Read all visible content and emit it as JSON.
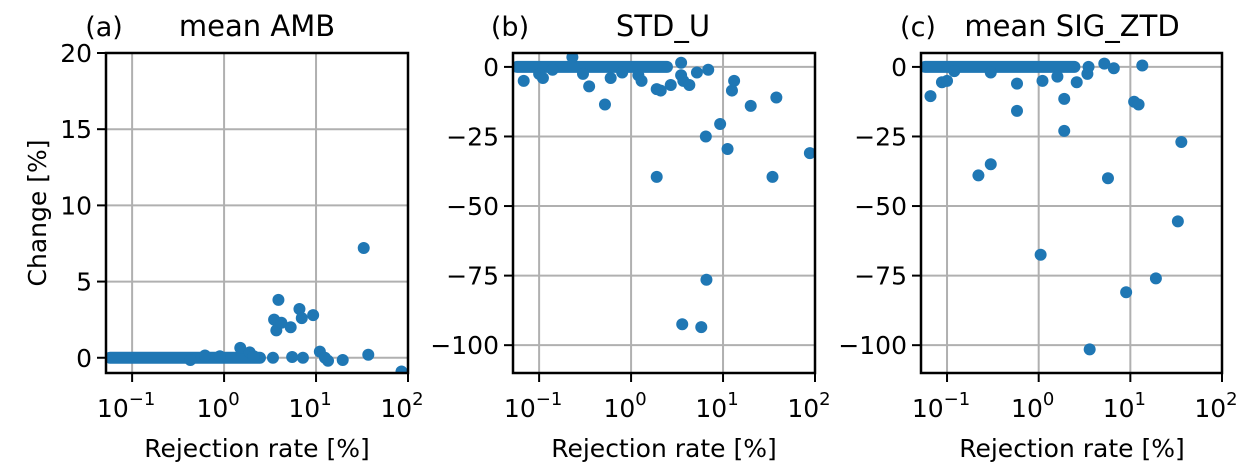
{
  "figure": {
    "ylabel": "Change [%]",
    "point_color": "#1f77b4",
    "grid_color": "#b0b0b0"
  },
  "chart_data": [
    {
      "type": "scatter",
      "panel_label": "(a)",
      "title": "mean AMB",
      "xlabel": "Rejection rate [%]",
      "ylabel": "Change [%]",
      "xscale": "log",
      "xlim": [
        0.052,
        100
      ],
      "ylim": [
        -1,
        20
      ],
      "xticks": [
        0.1,
        1,
        10,
        100
      ],
      "xtick_labels": [
        [
          "10",
          "−1"
        ],
        [
          "10",
          "0"
        ],
        [
          "10",
          "1"
        ],
        [
          "10",
          "2"
        ]
      ],
      "yticks": [
        0,
        5,
        10,
        15,
        20
      ],
      "ytick_labels": [
        "0",
        "5",
        "10",
        "15",
        "20"
      ],
      "grid": true,
      "dense_band": {
        "x_from": 0.052,
        "x_to": 3.0,
        "y": 0
      },
      "points": [
        [
          0.43,
          -0.15
        ],
        [
          0.62,
          0.15
        ],
        [
          0.9,
          0.1
        ],
        [
          1.5,
          0.65
        ],
        [
          1.9,
          0.35
        ],
        [
          2.1,
          0.1
        ],
        [
          3.4,
          0.0
        ],
        [
          3.5,
          2.5
        ],
        [
          3.7,
          1.8
        ],
        [
          3.9,
          3.8
        ],
        [
          4.2,
          2.3
        ],
        [
          5.3,
          2.0
        ],
        [
          5.5,
          0.05
        ],
        [
          6.6,
          3.2
        ],
        [
          7.0,
          2.6
        ],
        [
          7.2,
          0.0
        ],
        [
          9.3,
          2.8
        ],
        [
          11.0,
          0.4
        ],
        [
          12.5,
          0.0
        ],
        [
          13.5,
          -0.2
        ],
        [
          19.5,
          -0.15
        ],
        [
          33.0,
          7.2
        ],
        [
          37.0,
          0.2
        ],
        [
          85.0,
          -0.9
        ]
      ]
    },
    {
      "type": "scatter",
      "panel_label": "(b)",
      "title": "STD_U",
      "xlabel": "Rejection rate [%]",
      "xscale": "log",
      "xlim": [
        0.052,
        100
      ],
      "ylim": [
        -110,
        5
      ],
      "xticks": [
        0.1,
        1,
        10,
        100
      ],
      "xtick_labels": [
        [
          "10",
          "−1"
        ],
        [
          "10",
          "0"
        ],
        [
          "10",
          "1"
        ],
        [
          "10",
          "2"
        ]
      ],
      "yticks": [
        0,
        -25,
        -50,
        -75,
        -100
      ],
      "ytick_labels": [
        "0",
        "−25",
        "−50",
        "−75",
        "−100"
      ],
      "grid": true,
      "dense_band": {
        "x_from": 0.052,
        "x_to": 3.0,
        "y": 0
      },
      "points": [
        [
          0.068,
          -5
        ],
        [
          0.1,
          -2.5
        ],
        [
          0.11,
          -4
        ],
        [
          0.14,
          -1
        ],
        [
          0.23,
          3.5
        ],
        [
          0.3,
          -2.5
        ],
        [
          0.35,
          -7
        ],
        [
          0.52,
          -13.5
        ],
        [
          0.6,
          -4
        ],
        [
          0.8,
          -2
        ],
        [
          1.2,
          -3
        ],
        [
          1.3,
          -5
        ],
        [
          1.9,
          -8
        ],
        [
          2.1,
          -8.5
        ],
        [
          2.7,
          -6.5
        ],
        [
          3.5,
          1.5
        ],
        [
          3.5,
          -3
        ],
        [
          3.7,
          -5
        ],
        [
          4.3,
          -6.5
        ],
        [
          5.2,
          -2
        ],
        [
          6.9,
          -1
        ],
        [
          6.5,
          -25
        ],
        [
          9.3,
          -20.5
        ],
        [
          11.2,
          -29.5
        ],
        [
          12.5,
          -8.5
        ],
        [
          13.2,
          -5
        ],
        [
          20.0,
          -14
        ],
        [
          34.5,
          -39.5
        ],
        [
          38.0,
          -11
        ],
        [
          88.0,
          -31
        ],
        [
          1.9,
          -39.5
        ],
        [
          3.6,
          -92.5
        ],
        [
          5.8,
          -93.5
        ],
        [
          6.6,
          -76.5
        ]
      ]
    },
    {
      "type": "scatter",
      "panel_label": "(c)",
      "title": "mean SIG_ZTD",
      "xlabel": "Rejection rate [%]",
      "xscale": "log",
      "xlim": [
        0.052,
        100
      ],
      "ylim": [
        -110,
        5
      ],
      "xticks": [
        0.1,
        1,
        10,
        100
      ],
      "xtick_labels": [
        [
          "10",
          "−1"
        ],
        [
          "10",
          "0"
        ],
        [
          "10",
          "1"
        ],
        [
          "10",
          "2"
        ]
      ],
      "yticks": [
        0,
        -25,
        -50,
        -75,
        -100
      ],
      "ytick_labels": [
        "0",
        "−25",
        "−50",
        "−75",
        "−100"
      ],
      "grid": true,
      "dense_band": {
        "x_from": 0.052,
        "x_to": 3.0,
        "y": 0
      },
      "points": [
        [
          0.066,
          -10.5
        ],
        [
          0.088,
          -5.5
        ],
        [
          0.1,
          -5
        ],
        [
          0.12,
          -1.5
        ],
        [
          0.3,
          -2
        ],
        [
          0.58,
          -6
        ],
        [
          1.1,
          -5
        ],
        [
          1.6,
          -3.5
        ],
        [
          2.6,
          -5.5
        ],
        [
          3.4,
          -2.5
        ],
        [
          3.5,
          0
        ],
        [
          5.2,
          1.2
        ],
        [
          6.6,
          -0.5
        ],
        [
          13.5,
          0.5
        ],
        [
          1.9,
          -11.5
        ],
        [
          0.58,
          -15.8
        ],
        [
          11.0,
          -12.5
        ],
        [
          12.3,
          -13.5
        ],
        [
          1.9,
          -23
        ],
        [
          0.22,
          -39
        ],
        [
          0.3,
          -35
        ],
        [
          5.7,
          -40
        ],
        [
          36.0,
          -27
        ],
        [
          33.0,
          -55.5
        ],
        [
          1.05,
          -67.5
        ],
        [
          9.0,
          -81
        ],
        [
          19.0,
          -76
        ],
        [
          3.6,
          -101.5
        ]
      ]
    }
  ]
}
